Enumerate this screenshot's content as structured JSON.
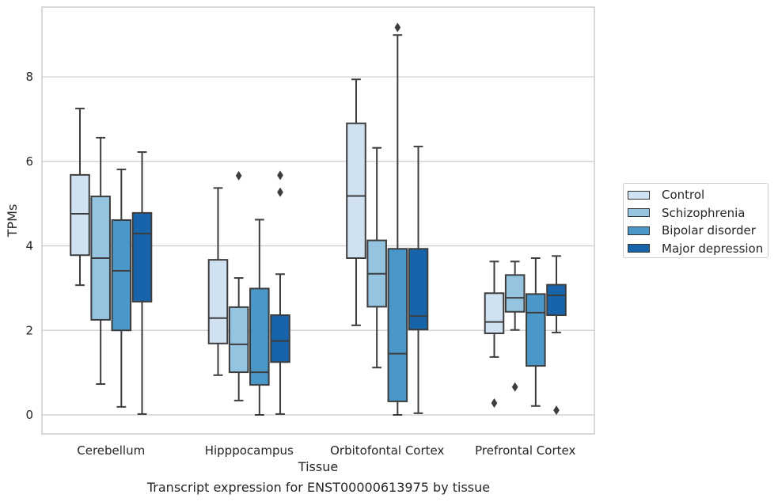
{
  "chart_data": {
    "type": "box",
    "xlabel": "Tissue",
    "ylabel": "TPMs",
    "caption": "Transcript expression for ENST00000613975 by tissue",
    "ylim": [
      -0.45,
      9.65
    ],
    "yticks": [
      0,
      2,
      4,
      6,
      8
    ],
    "grid": "horizontal",
    "legend_position": "right",
    "categories": [
      "Cerebellum",
      "Hipppocampus",
      "Orbitofontal Cortex",
      "Prefrontal Cortex"
    ],
    "series": [
      {
        "name": "Control",
        "color": "#d0e1f2",
        "boxes": [
          {
            "whislo": 3.07,
            "q1": 3.78,
            "med": 4.76,
            "q3": 5.68,
            "whishi": 7.25,
            "fliers": []
          },
          {
            "whislo": 0.94,
            "q1": 1.69,
            "med": 2.29,
            "q3": 3.67,
            "whishi": 5.37,
            "fliers": []
          },
          {
            "whislo": 2.12,
            "q1": 3.71,
            "med": 5.18,
            "q3": 6.9,
            "whishi": 7.94,
            "fliers": []
          },
          {
            "whislo": 1.37,
            "q1": 1.93,
            "med": 2.2,
            "q3": 2.88,
            "whishi": 3.63,
            "fliers": [
              0.28
            ]
          }
        ]
      },
      {
        "name": "Schizophrenia",
        "color": "#94c4df",
        "boxes": [
          {
            "whislo": 0.73,
            "q1": 2.25,
            "med": 3.71,
            "q3": 5.17,
            "whishi": 6.56,
            "fliers": []
          },
          {
            "whislo": 0.34,
            "q1": 1.01,
            "med": 1.67,
            "q3": 2.55,
            "whishi": 3.24,
            "fliers": [
              5.66
            ]
          },
          {
            "whislo": 1.12,
            "q1": 2.56,
            "med": 3.34,
            "q3": 4.13,
            "whishi": 6.32,
            "fliers": []
          },
          {
            "whislo": 2.01,
            "q1": 2.44,
            "med": 2.77,
            "q3": 3.31,
            "whishi": 3.63,
            "fliers": [
              0.66
            ]
          }
        ]
      },
      {
        "name": "Bipolar disorder",
        "color": "#4a98c9",
        "boxes": [
          {
            "whislo": 0.19,
            "q1": 2.0,
            "med": 3.41,
            "q3": 4.61,
            "whishi": 5.81,
            "fliers": []
          },
          {
            "whislo": 0.0,
            "q1": 0.71,
            "med": 1.01,
            "q3": 2.99,
            "whishi": 4.62,
            "fliers": []
          },
          {
            "whislo": 0.0,
            "q1": 0.32,
            "med": 1.45,
            "q3": 3.93,
            "whishi": 8.99,
            "fliers": [
              9.17
            ]
          },
          {
            "whislo": 0.21,
            "q1": 1.16,
            "med": 2.42,
            "q3": 2.86,
            "whishi": 3.71,
            "fliers": []
          }
        ]
      },
      {
        "name": "Major depression",
        "color": "#1764ab",
        "boxes": [
          {
            "whislo": 0.02,
            "q1": 2.68,
            "med": 4.29,
            "q3": 4.78,
            "whishi": 6.22,
            "fliers": []
          },
          {
            "whislo": 0.02,
            "q1": 1.25,
            "med": 1.75,
            "q3": 2.36,
            "whishi": 3.33,
            "fliers": [
              5.27,
              5.67
            ]
          },
          {
            "whislo": 0.04,
            "q1": 2.02,
            "med": 2.34,
            "q3": 3.93,
            "whishi": 6.35,
            "fliers": []
          },
          {
            "whislo": 1.95,
            "q1": 2.36,
            "med": 2.83,
            "q3": 3.08,
            "whishi": 3.76,
            "fliers": [
              0.11
            ]
          }
        ]
      }
    ]
  }
}
